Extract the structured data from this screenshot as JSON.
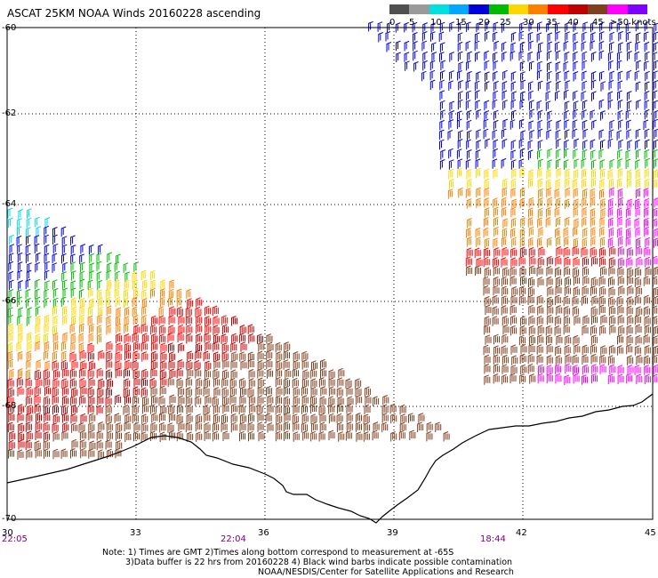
{
  "title": "ASCAT 25KM NOAA Winds 20160228 ascending",
  "legend": {
    "labels": [
      "0",
      "5",
      "10",
      "15",
      "20",
      "25",
      "30",
      "35",
      "40",
      "45",
      ">50 knots"
    ],
    "colors": [
      "#505050",
      "#9a9a9a",
      "#00e0e0",
      "#00a8ff",
      "#0000dd",
      "#00bb00",
      "#ffd700",
      "#ff8000",
      "#ff0000",
      "#c00000",
      "#804020",
      "#ff00ff",
      "#8000ff"
    ]
  },
  "axes": {
    "lat_labels": [
      "-60",
      "-62",
      "-64",
      "-66",
      "-68",
      "-70"
    ],
    "lon_labels": [
      "30",
      "33",
      "36",
      "39",
      "42",
      "45"
    ],
    "times": [
      "22:05",
      "22:04",
      "18:44"
    ]
  },
  "notes": {
    "line1": "Note: 1) Times are GMT 2)Times along bottom correspond to measurement at -65S",
    "line2": "3)Data buffer is 22 hrs from 20160228 4) Black wind barbs indicate possible contamination",
    "line3": "NOAA/NESDIS/Center for Satellite Applications and Research"
  }
}
